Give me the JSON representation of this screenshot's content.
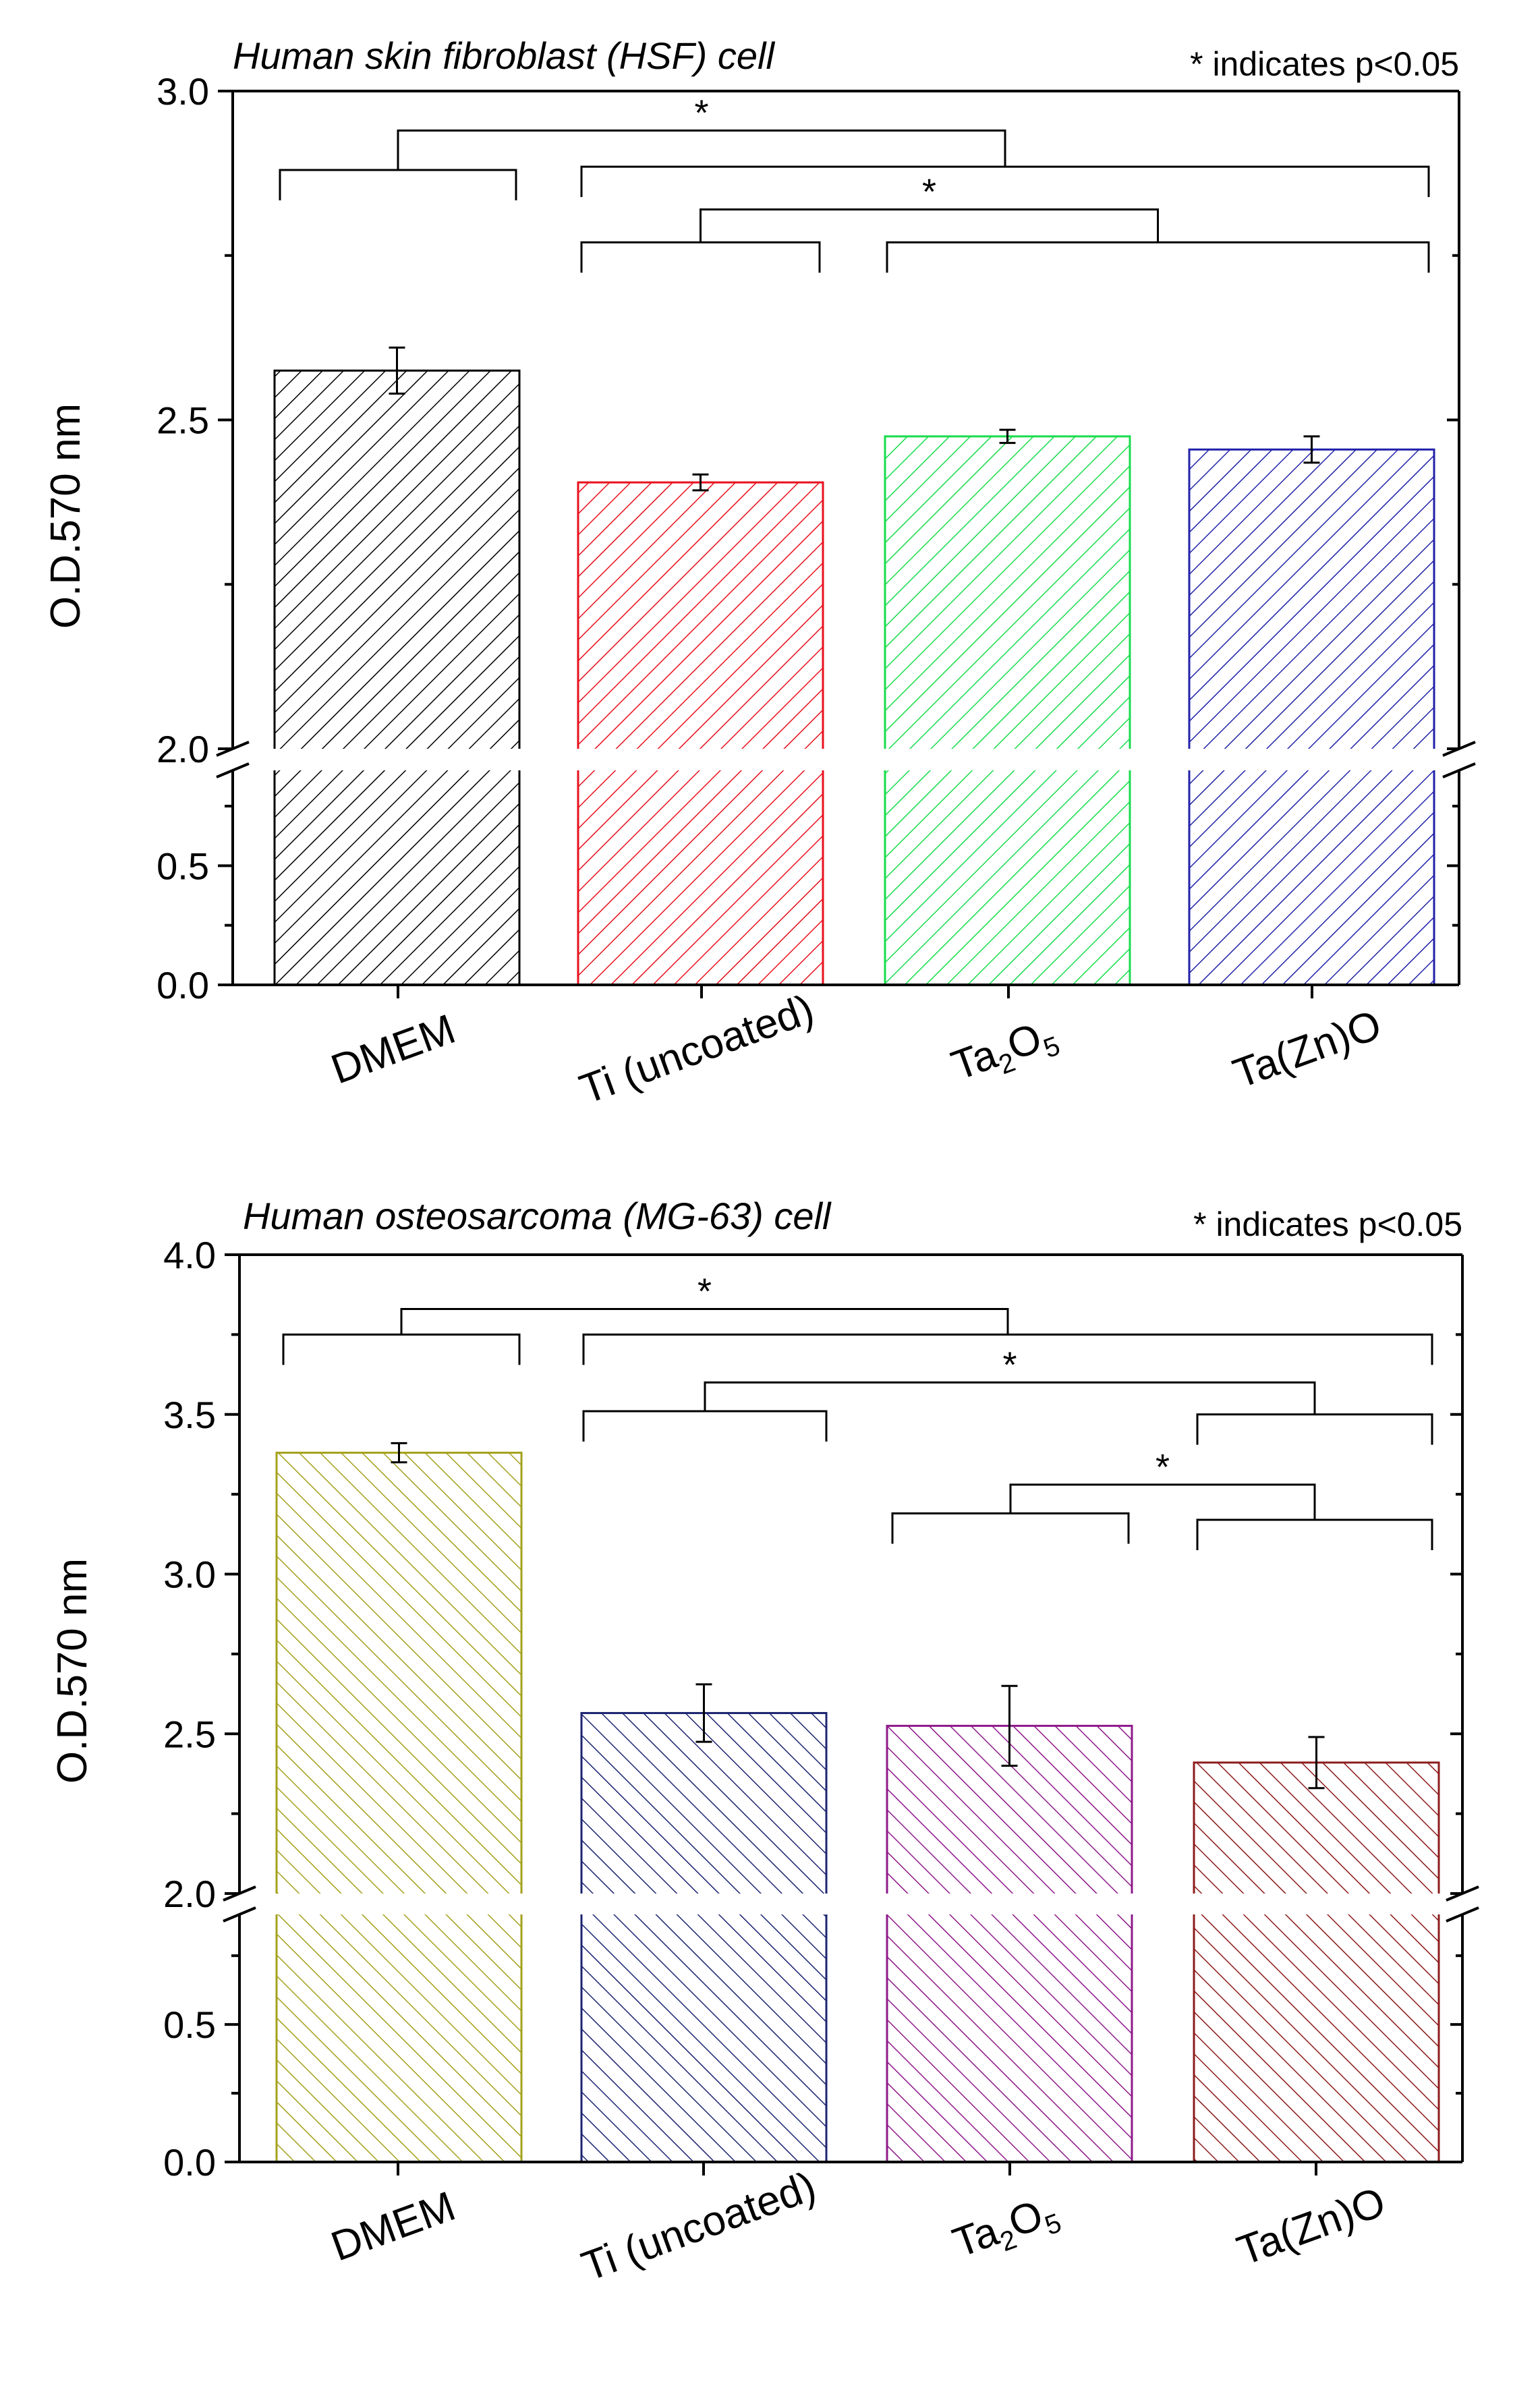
{
  "chart_data": [
    {
      "type": "bar",
      "title": "Human skin fibroblast (HSF) cell",
      "note": "* indicates p<0.05",
      "ylabel": "O.D.570 nm",
      "xlabel": "",
      "axis_break": {
        "lower": [
          0,
          0.9
        ],
        "upper": [
          2.0,
          3.0
        ]
      },
      "lower_ticks": [
        "0.0",
        "0.5"
      ],
      "upper_ticks": [
        "2.0",
        "2.5",
        "3.0"
      ],
      "categories": [
        "DMEM",
        "Ti (uncoated)",
        "Ta2O5",
        "Ta(Zn)O"
      ],
      "category_labels": [
        {
          "main": "DMEM"
        },
        {
          "main": "Ti (uncoated)"
        },
        {
          "main": "Ta",
          "sub1": "2",
          "mid": "O",
          "sub2": "5"
        },
        {
          "main": "Ta(Zn)O"
        }
      ],
      "values": [
        2.575,
        2.405,
        2.475,
        2.455
      ],
      "errors": [
        0.035,
        0.012,
        0.01,
        0.02
      ],
      "colors": [
        "#000000",
        "#e8111d",
        "#18dc4c",
        "#2222aa"
      ],
      "brackets": [
        {
          "a": [
            0,
            0
          ],
          "b": [
            1,
            3
          ],
          "ya": 2.88,
          "yb": 2.885,
          "ytop": 2.94,
          "star": true
        },
        {
          "a": [
            1,
            1
          ],
          "b": [
            2,
            3
          ],
          "ya": 2.77,
          "yb": 2.77,
          "ytop": 2.82,
          "star": true
        }
      ]
    },
    {
      "type": "bar",
      "title": "Human osteosarcoma (MG-63) cell",
      "note": "* indicates p<0.05",
      "ylabel": "O.D.570 nm",
      "xlabel": "",
      "axis_break": {
        "lower": [
          0,
          0.9
        ],
        "upper": [
          2.0,
          4.0
        ]
      },
      "lower_ticks": [
        "0.0",
        "0.5"
      ],
      "upper_ticks": [
        "2.0",
        "2.5",
        "3.0",
        "3.5",
        "4.0"
      ],
      "categories": [
        "DMEM",
        "Ti (uncoated)",
        "Ta2O5",
        "Ta(Zn)O"
      ],
      "category_labels": [
        {
          "main": "DMEM"
        },
        {
          "main": "Ti (uncoated)"
        },
        {
          "main": "Ta",
          "sub1": "2",
          "mid": "O",
          "sub2": "5"
        },
        {
          "main": "Ta(Zn)O"
        }
      ],
      "values": [
        3.38,
        2.565,
        2.525,
        2.41
      ],
      "errors": [
        0.03,
        0.09,
        0.125,
        0.08
      ],
      "colors": [
        "#a3a11b",
        "#1d2470",
        "#8e1a8a",
        "#8c1c1c"
      ],
      "brackets": [
        {
          "a": [
            0,
            0
          ],
          "b": [
            1,
            3
          ],
          "ya": 3.75,
          "yb": 3.75,
          "ytop": 3.83,
          "star": true
        },
        {
          "a": [
            1,
            1
          ],
          "b": [
            3,
            3
          ],
          "ya": 3.51,
          "yb": 3.5,
          "ytop": 3.6,
          "star": true
        },
        {
          "a": [
            2,
            2
          ],
          "b": [
            3,
            3
          ],
          "ya": 3.19,
          "yb": 3.17,
          "ytop": 3.28,
          "star": true
        }
      ]
    }
  ]
}
